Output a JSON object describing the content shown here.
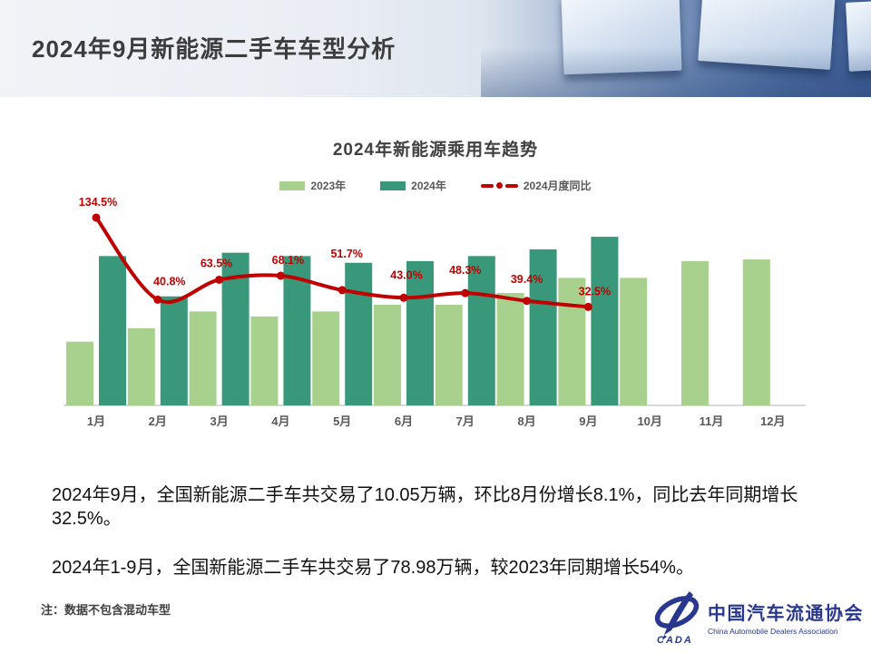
{
  "header": {
    "title": "2024年9月新能源二手车车型分析"
  },
  "chart_data": {
    "type": "combo_bar_line",
    "title": "2024年新能源乘用车趋势",
    "categories": [
      "1月",
      "2月",
      "3月",
      "4月",
      "5月",
      "6月",
      "7月",
      "8月",
      "9月",
      "10月",
      "11月",
      "12月"
    ],
    "series": [
      {
        "name": "2023年",
        "kind": "bar",
        "color": "#a9d18e",
        "values": [
          3.8,
          4.6,
          5.6,
          5.3,
          5.6,
          6.0,
          6.0,
          6.7,
          7.6,
          7.6,
          8.6,
          8.7
        ]
      },
      {
        "name": "2024年",
        "kind": "bar",
        "color": "#39987a",
        "values": [
          8.9,
          6.5,
          9.1,
          8.9,
          8.5,
          8.6,
          8.9,
          9.3,
          10.05,
          null,
          null,
          null
        ]
      },
      {
        "name": "2024月度同比",
        "kind": "line",
        "color": "#c00000",
        "values": [
          134.5,
          40.8,
          63.5,
          68.1,
          51.7,
          43.0,
          48.3,
          39.4,
          32.5,
          null,
          null,
          null
        ],
        "labels": [
          "134.5%",
          "40.8%",
          "63.5%",
          "68.1%",
          "51.7%",
          "43.0%",
          "48.3%",
          "39.4%",
          "32.5%"
        ]
      }
    ],
    "bar_unit": "万辆",
    "bar_ylim": [
      0,
      12
    ],
    "line_ylim": [
      -80,
      150
    ],
    "legend_position": "top",
    "gridlines": false,
    "label_dx": [
      2,
      13,
      -3,
      8,
      5,
      3,
      0,
      0,
      7
    ],
    "label_dy": [
      -13,
      -16,
      -14,
      -13,
      -36,
      -21,
      -21,
      -20,
      -13
    ]
  },
  "body": {
    "paragraph1": "2024年9月，全国新能源二手车共交易了10.05万辆，环比8月份增长8.1%，同比去年同期增长32.5%。",
    "paragraph2": "2024年1-9月，全国新能源二手车共交易了78.98万辆，较2023年同期增长54%。",
    "note": "注：数据不包含混动车型"
  },
  "logo": {
    "emblem_text": "CADA",
    "name_cn": "中国汽车流通协会",
    "name_en": "China Automobile Dealers Association",
    "color": "#29388e"
  }
}
